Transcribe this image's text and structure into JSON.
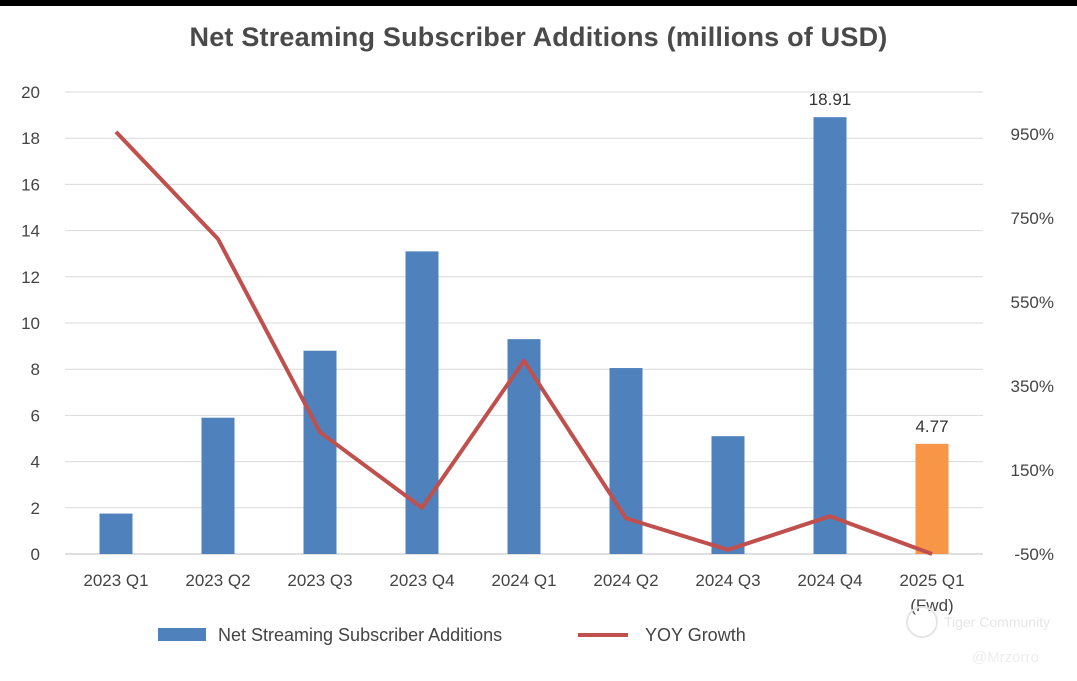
{
  "chart_data": {
    "type": "bar+line",
    "title": "Net Streaming Subscriber Additions (millions of USD)",
    "categories": [
      "2023 Q1",
      "2023 Q2",
      "2023 Q3",
      "2023 Q4",
      "2024 Q1",
      "2024 Q2",
      "2024 Q3",
      "2024 Q4",
      "2025 Q1 (Fwd)"
    ],
    "series": [
      {
        "name": "Net Streaming Subscriber Additions",
        "type": "bar",
        "axis": "left",
        "values": [
          1.75,
          5.9,
          8.8,
          13.1,
          9.3,
          8.05,
          5.1,
          18.91,
          4.77
        ],
        "colors": [
          "#4f81bd",
          "#4f81bd",
          "#4f81bd",
          "#4f81bd",
          "#4f81bd",
          "#4f81bd",
          "#4f81bd",
          "#4f81bd",
          "#f79646"
        ]
      },
      {
        "name": "YOY Growth",
        "type": "line",
        "axis": "right",
        "unit": "%",
        "values": [
          955,
          700,
          240,
          60,
          410,
          35,
          -40,
          40,
          -50
        ],
        "color": "#c0504d"
      }
    ],
    "data_labels": [
      {
        "index": 7,
        "text": "18.91"
      },
      {
        "index": 8,
        "text": "4.77"
      }
    ],
    "y_left": {
      "min": 0,
      "max": 20,
      "ticks": [
        "0",
        "2",
        "4",
        "6",
        "8",
        "10",
        "12",
        "14",
        "16",
        "18",
        "20"
      ]
    },
    "y_right": {
      "min": -50,
      "max": 1050,
      "ticks": [
        {
          "value": -50,
          "label": "-50%"
        },
        {
          "value": 150,
          "label": "150%"
        },
        {
          "value": 350,
          "label": "350%"
        },
        {
          "value": 550,
          "label": "550%"
        },
        {
          "value": 750,
          "label": "750%"
        },
        {
          "value": 950,
          "label": "950%"
        }
      ]
    },
    "gridlines": true,
    "legend_position": "bottom"
  },
  "legend": {
    "bar_label": "Net Streaming Subscriber Additions",
    "line_label": "YOY Growth"
  },
  "watermark": {
    "brand": "Tiger Community",
    "user": "@Mrzorro"
  }
}
